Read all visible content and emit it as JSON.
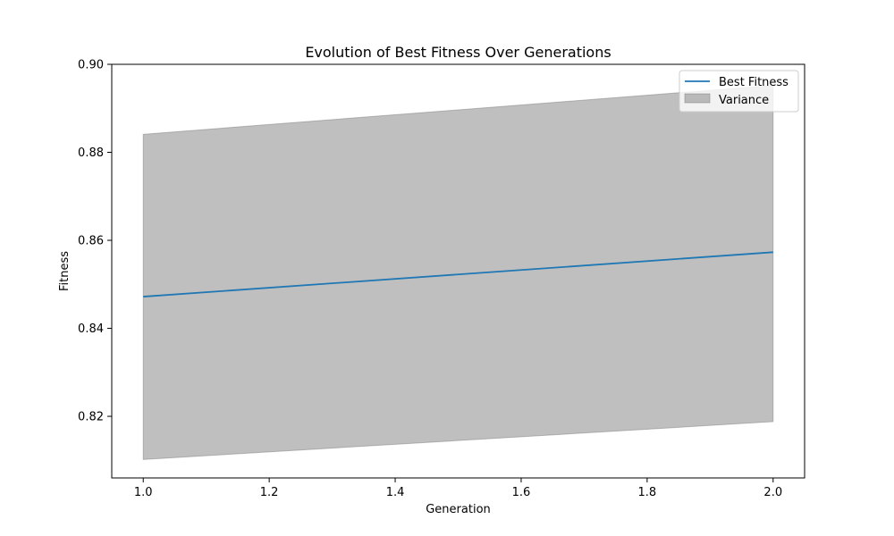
{
  "chart_data": {
    "type": "line",
    "title": "Evolution of Best Fitness Over Generations",
    "xlabel": "Generation",
    "ylabel": "Fitness",
    "xlim": [
      0.95,
      2.05
    ],
    "ylim": [
      0.806,
      0.9
    ],
    "x_ticks": [
      1.0,
      1.2,
      1.4,
      1.6,
      1.8,
      2.0
    ],
    "x_tick_labels": [
      "1.0",
      "1.2",
      "1.4",
      "1.6",
      "1.8",
      "2.0"
    ],
    "y_ticks": [
      0.82,
      0.84,
      0.86,
      0.88,
      0.9
    ],
    "y_tick_labels": [
      "0.82",
      "0.84",
      "0.86",
      "0.88",
      "0.90"
    ],
    "grid": false,
    "legend_position": "top-right",
    "series": [
      {
        "name": "Best Fitness",
        "kind": "line",
        "color": "#1f77b4",
        "x": [
          1.0,
          2.0
        ],
        "y": [
          0.8472,
          0.8573
        ]
      }
    ],
    "bands": [
      {
        "name": "Variance",
        "kind": "fill_between",
        "color": "#808080",
        "alpha": 0.5,
        "x": [
          1.0,
          2.0
        ],
        "lower": [
          0.8102,
          0.8188
        ],
        "upper": [
          0.8841,
          0.8952
        ]
      }
    ]
  }
}
